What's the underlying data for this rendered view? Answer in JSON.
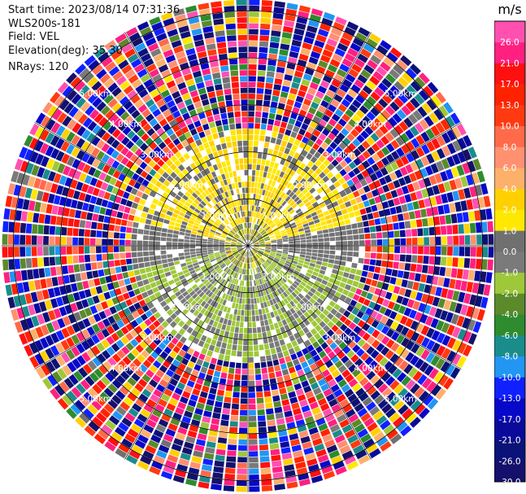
{
  "header": {
    "start_time": "Start time: 2023/08/14 07:31:36",
    "instrument": "WLS200s-181",
    "field": "Field: VEL",
    "elevation": "Elevation(deg): 35.30",
    "nrays": "NRays: 120"
  },
  "chart_data": {
    "type": "heatmap",
    "projection": "polar PPI",
    "title": "",
    "field": "VEL",
    "n_rays": 120,
    "elevation_deg": 35.3,
    "range_rings": [
      {
        "label": "1.00km",
        "value_km": 1.0
      },
      {
        "label": "2.00km",
        "value_km": 2.0
      },
      {
        "label": "3.00km",
        "value_km": 3.0
      },
      {
        "label": "4.00km",
        "value_km": 4.0
      },
      {
        "label": "5.00km",
        "value_km": 5.0
      }
    ],
    "noise_start_km": 2.5,
    "colorbar": {
      "unit": "m/s",
      "bounds": [
        -30.0,
        -26.0,
        -21.0,
        -17.0,
        -13.0,
        -10.0,
        -8.0,
        -6.0,
        -4.0,
        -2.0,
        -1.0,
        0.0,
        1.0,
        2.0,
        4.0,
        6.0,
        8.0,
        10.0,
        13.0,
        17.0,
        21.0,
        26.0
      ],
      "tick_labels": [
        "-30.0",
        "-26.0",
        "-21.0",
        "-17.0",
        "-13.0",
        "-10.0",
        "-8.0",
        "-6.0",
        "-4.0",
        "-2.0",
        "-1.0",
        "0.0",
        "1.0",
        "2.0",
        "4.0",
        "6.0",
        "8.0",
        "10.0",
        "13.0",
        "17.0",
        "21.0",
        "26.0"
      ],
      "colors": [
        "#15106b",
        "#0b1278",
        "#0a0a9a",
        "#0808c8",
        "#1020ff",
        "#2196f3",
        "#1a8c8c",
        "#2e8b2e",
        "#5a8a2a",
        "#9ec83a",
        "#7a7a7a",
        "#707070",
        "#ffe800",
        "#ffd000",
        "#fcb06a",
        "#ff9070",
        "#ff6a4a",
        "#ff3a10",
        "#ff2200",
        "#ff1010",
        "#ff2080",
        "#ff50b0"
      ]
    }
  }
}
